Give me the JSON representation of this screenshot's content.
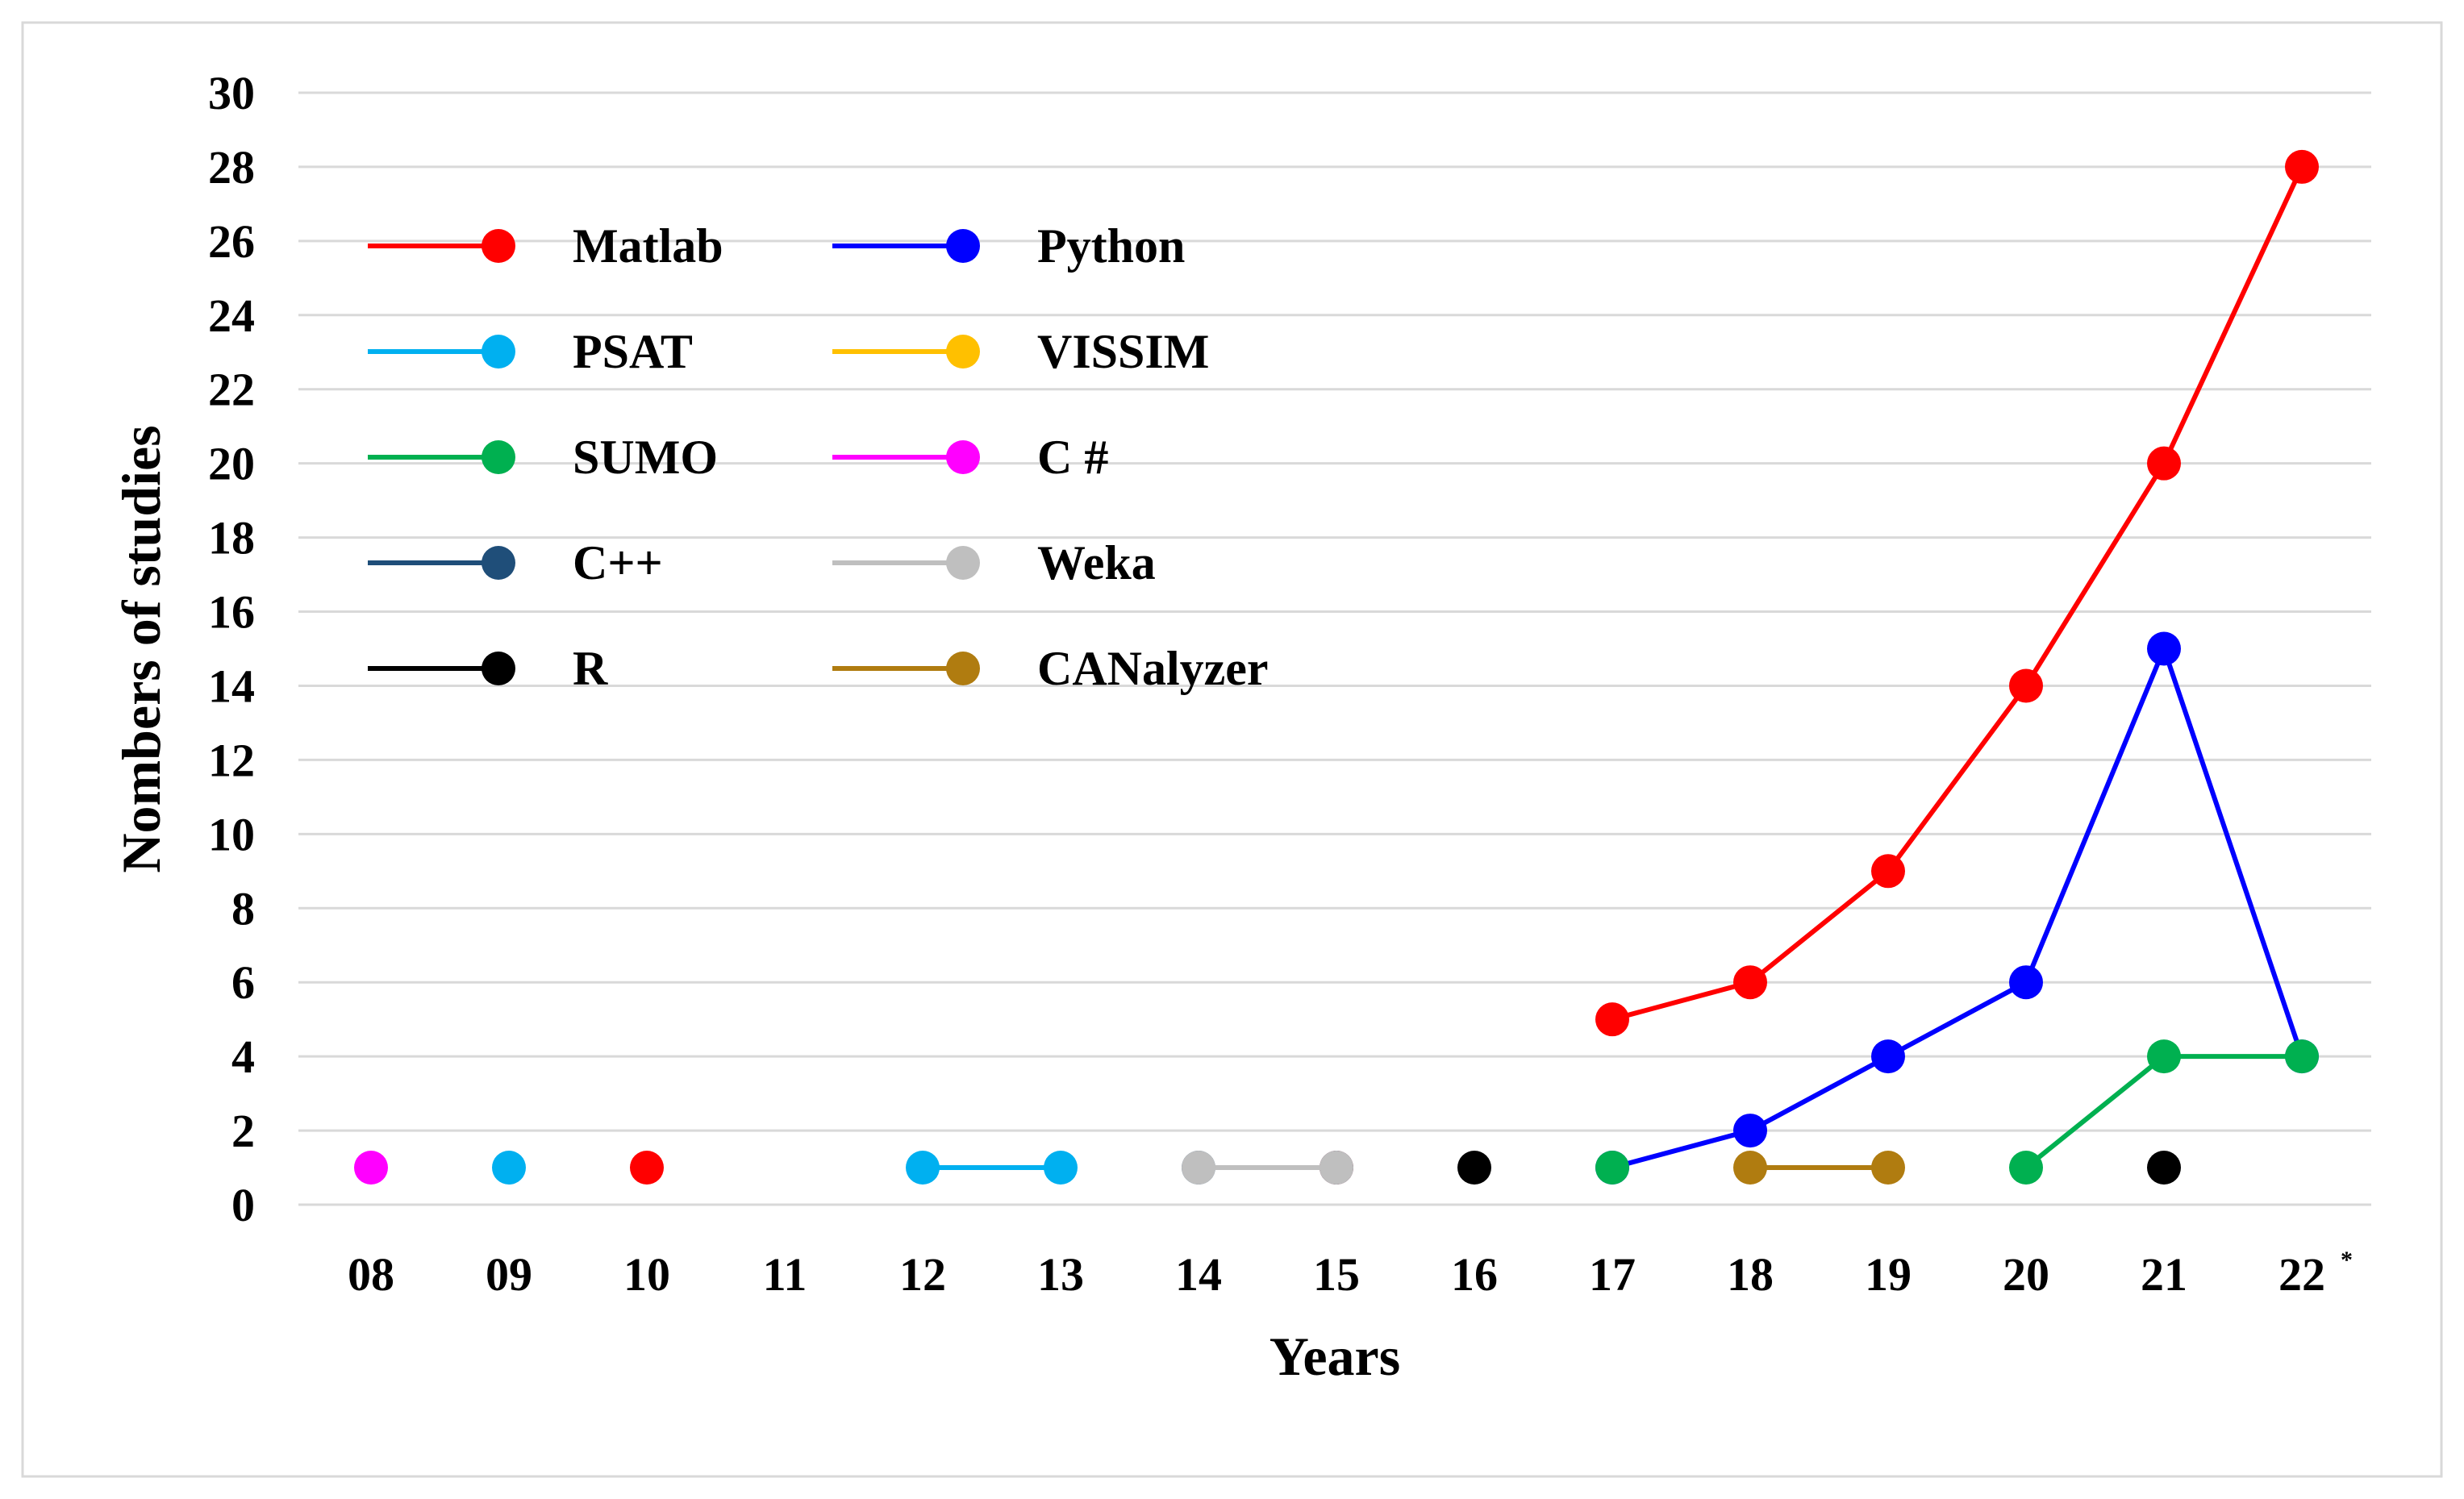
{
  "chart_data": {
    "type": "line",
    "title": "",
    "xlabel": "Years",
    "ylabel": "Nombers of studies",
    "categories": [
      "08",
      "09",
      "10",
      "11",
      "12",
      "13",
      "14",
      "15",
      "16",
      "17",
      "18",
      "19",
      "20",
      "21",
      "22"
    ],
    "last_category_marker": "*",
    "ylim": [
      0,
      30
    ],
    "ytick_step": 2,
    "grid": true,
    "legend_position": "top-left",
    "series": [
      {
        "name": "Matlab",
        "color": "#ff0000",
        "points": [
          [
            "10",
            1
          ],
          [
            "15",
            1
          ],
          [
            "17",
            5
          ],
          [
            "18",
            6
          ],
          [
            "19",
            9
          ],
          [
            "20",
            14
          ],
          [
            "21",
            20
          ],
          [
            "22",
            28
          ]
        ]
      },
      {
        "name": "Python",
        "color": "#0000ff",
        "points": [
          [
            "17",
            1
          ],
          [
            "18",
            2
          ],
          [
            "19",
            4
          ],
          [
            "20",
            6
          ],
          [
            "21",
            15
          ],
          [
            "22",
            4
          ]
        ]
      },
      {
        "name": "PSAT",
        "color": "#00b0f0",
        "points": [
          [
            "09",
            1
          ],
          [
            "12",
            1
          ],
          [
            "13",
            1
          ]
        ]
      },
      {
        "name": "VISSIM",
        "color": "#ffc000",
        "points": []
      },
      {
        "name": "SUMO",
        "color": "#00b050",
        "points": [
          [
            "17",
            1
          ],
          [
            "20",
            1
          ],
          [
            "21",
            4
          ],
          [
            "22",
            4
          ]
        ]
      },
      {
        "name": "C #",
        "color": "#ff00ff",
        "points": [
          [
            "08",
            1
          ]
        ]
      },
      {
        "name": "C++",
        "color": "#1f4e79",
        "points": [
          [
            "14",
            1
          ],
          [
            "15",
            1
          ]
        ]
      },
      {
        "name": "Weka",
        "color": "#bfbfbf",
        "points": [
          [
            "14",
            1
          ],
          [
            "15",
            1
          ]
        ]
      },
      {
        "name": "R",
        "color": "#000000",
        "points": [
          [
            "16",
            1
          ],
          [
            "21",
            1
          ]
        ]
      },
      {
        "name": "CANalyzer",
        "color": "#b07c10",
        "points": [
          [
            "18",
            1
          ],
          [
            "19",
            1
          ]
        ]
      }
    ]
  }
}
